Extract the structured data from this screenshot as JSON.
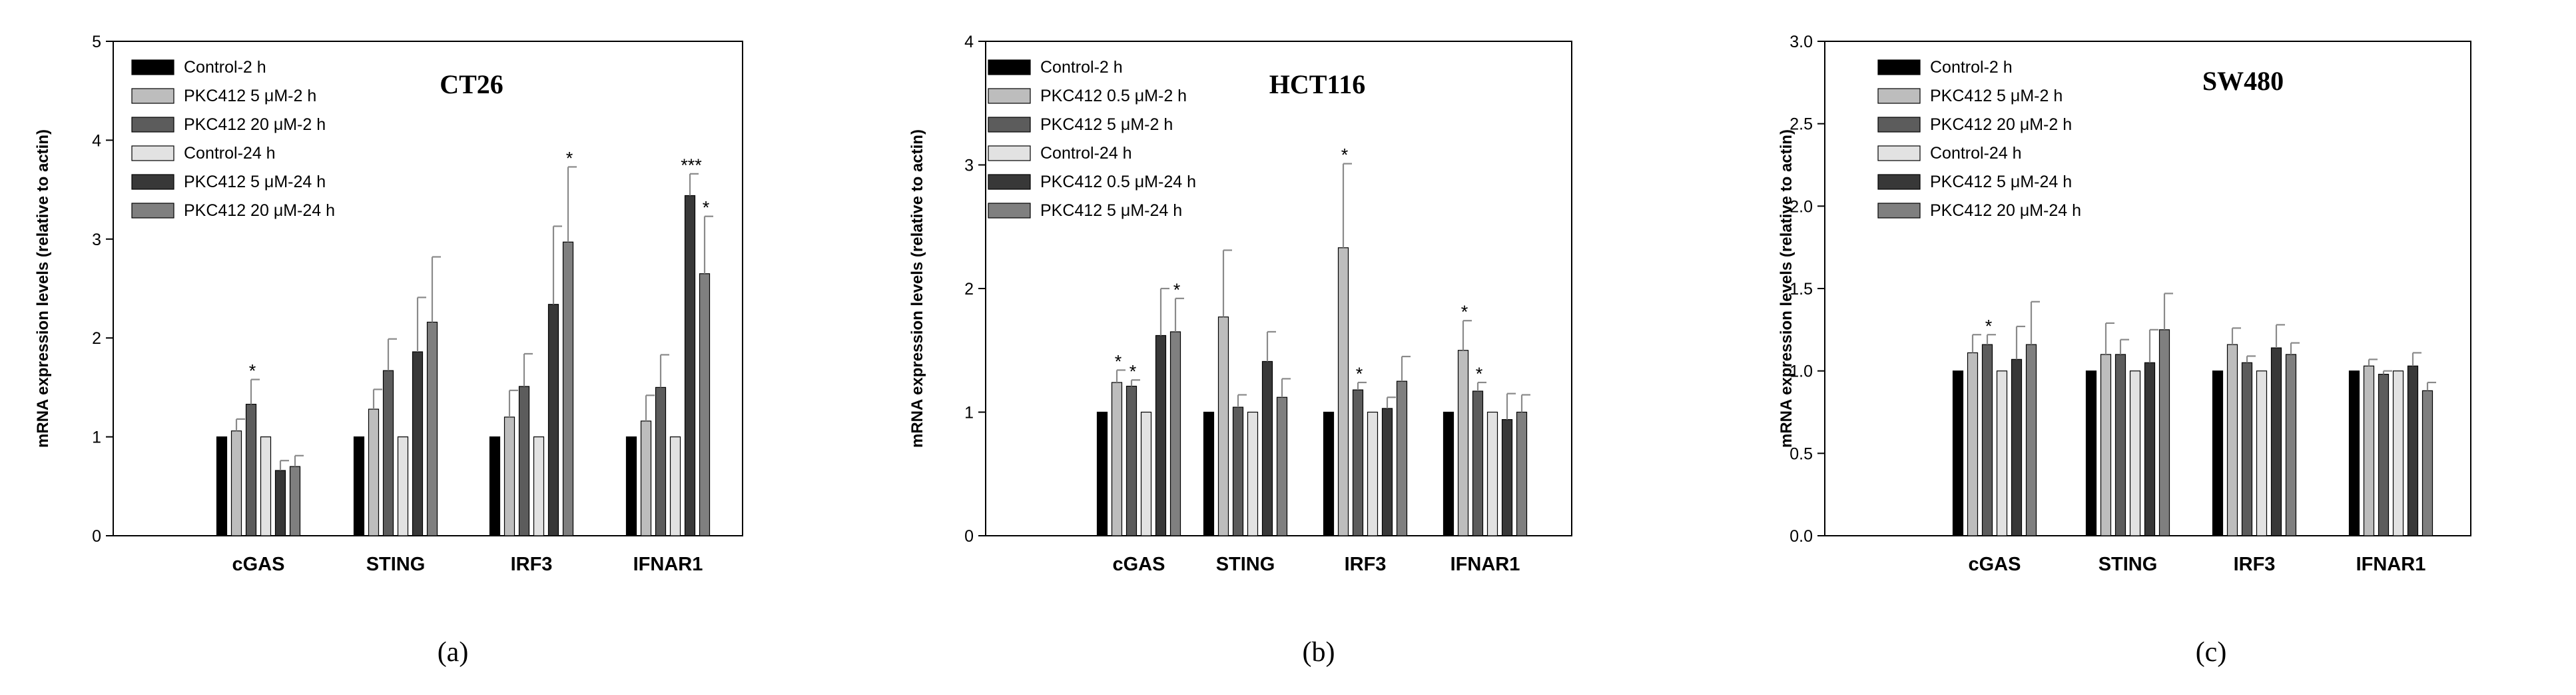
{
  "figure": {
    "series_colors": [
      "#000000",
      "#bdbdbd",
      "#5c5c5c",
      "#e2e2e2",
      "#383838",
      "#7f7f7f"
    ]
  },
  "chart_data": [
    {
      "type": "bar",
      "panel_label": "(a)",
      "title": "CT26",
      "xlabel": "",
      "ylabel": "mRNA expression levels (relative to actin)",
      "ylim": [
        0,
        5
      ],
      "yticks": [
        "0",
        "1",
        "2",
        "3",
        "4",
        "5"
      ],
      "categories": [
        "cGAS",
        "STING",
        "IRF3",
        "IFNAR1"
      ],
      "legend_position": "top-left",
      "series": [
        {
          "name": "Control-2 h",
          "values": [
            1.0,
            1.0,
            1.0,
            1.0
          ],
          "errors": [
            0,
            0,
            0,
            0
          ],
          "sig": [
            "",
            "",
            "",
            ""
          ]
        },
        {
          "name": "PKC412 5 μM-2 h",
          "values": [
            1.06,
            1.28,
            1.2,
            1.16
          ],
          "errors": [
            0.12,
            0.2,
            0.27,
            0.26
          ],
          "sig": [
            "",
            "",
            "",
            ""
          ]
        },
        {
          "name": "PKC412 20 μM-2 h",
          "values": [
            1.33,
            1.67,
            1.51,
            1.5
          ],
          "errors": [
            0.25,
            0.32,
            0.33,
            0.33
          ],
          "sig": [
            "*",
            "",
            "",
            ""
          ]
        },
        {
          "name": "Control-24 h",
          "values": [
            1.0,
            1.0,
            1.0,
            1.0
          ],
          "errors": [
            0,
            0,
            0,
            0
          ],
          "sig": [
            "",
            "",
            "",
            ""
          ]
        },
        {
          "name": "PKC412 5 μM-24 h",
          "values": [
            0.66,
            1.86,
            2.34,
            3.44
          ],
          "errors": [
            0.1,
            0.55,
            0.79,
            0.22
          ],
          "sig": [
            "",
            "",
            "",
            "***"
          ]
        },
        {
          "name": "PKC412 20 μM-24 h",
          "values": [
            0.7,
            2.16,
            2.97,
            2.65
          ],
          "errors": [
            0.11,
            0.66,
            0.76,
            0.58
          ],
          "sig": [
            "",
            "",
            "*",
            "*"
          ]
        }
      ]
    },
    {
      "type": "bar",
      "panel_label": "(b)",
      "title": "HCT116",
      "xlabel": "",
      "ylabel": "mRNA expression levels (relative to actin)",
      "ylim": [
        0,
        4
      ],
      "yticks": [
        "0",
        "1",
        "2",
        "3",
        "4"
      ],
      "categories": [
        "cGAS",
        "STING",
        "IRF3",
        "IFNAR1"
      ],
      "legend_position": "top-left",
      "series": [
        {
          "name": "Control-2 h",
          "values": [
            1.0,
            1.0,
            1.0,
            1.0
          ],
          "errors": [
            0,
            0,
            0,
            0
          ],
          "sig": [
            "",
            "",
            "",
            ""
          ]
        },
        {
          "name": "PKC412 0.5 μM-2 h",
          "values": [
            1.24,
            1.77,
            2.33,
            1.5
          ],
          "errors": [
            0.1,
            0.54,
            0.68,
            0.24
          ],
          "sig": [
            "*",
            "",
            "*",
            "*"
          ]
        },
        {
          "name": "PKC412 5 μM-2 h",
          "values": [
            1.21,
            1.04,
            1.18,
            1.17
          ],
          "errors": [
            0.05,
            0.1,
            0.06,
            0.07
          ],
          "sig": [
            "*",
            "",
            "*",
            "*"
          ]
        },
        {
          "name": "Control-24 h",
          "values": [
            1.0,
            1.0,
            1.0,
            1.0
          ],
          "errors": [
            0,
            0,
            0,
            0
          ],
          "sig": [
            "",
            "",
            "",
            ""
          ]
        },
        {
          "name": "PKC412 0.5 μM-24 h",
          "values": [
            1.62,
            1.41,
            1.03,
            0.94
          ],
          "errors": [
            0.38,
            0.24,
            0.09,
            0.21
          ],
          "sig": [
            "",
            "",
            "",
            ""
          ]
        },
        {
          "name": "PKC412 5 μM-24 h",
          "values": [
            1.65,
            1.12,
            1.25,
            1.0
          ],
          "errors": [
            0.27,
            0.15,
            0.2,
            0.14
          ],
          "sig": [
            "*",
            "",
            "",
            ""
          ]
        }
      ]
    },
    {
      "type": "bar",
      "panel_label": "(c)",
      "title": "SW480",
      "xlabel": "",
      "ylabel": "mRNA expression levels (relative to actin)",
      "ylim": [
        0,
        3
      ],
      "yticks": [
        "0.0",
        "0.5",
        "1.0",
        "1.5",
        "2.0",
        "2.5",
        "3.0"
      ],
      "categories": [
        "cGAS",
        "STING",
        "IRF3",
        "IFNAR1"
      ],
      "legend_position": "top-left",
      "series": [
        {
          "name": "Control-2 h",
          "values": [
            1.0,
            1.0,
            1.0,
            1.0
          ],
          "errors": [
            0,
            0,
            0,
            0
          ],
          "sig": [
            "",
            "",
            "",
            ""
          ]
        },
        {
          "name": "PKC412 5 μM-2 h",
          "values": [
            1.11,
            1.1,
            1.16,
            1.03
          ],
          "errors": [
            0.11,
            0.19,
            0.1,
            0.04
          ],
          "sig": [
            "",
            "",
            "",
            ""
          ]
        },
        {
          "name": "PKC412 20 μM-2 h",
          "values": [
            1.16,
            1.1,
            1.05,
            0.98
          ],
          "errors": [
            0.06,
            0.09,
            0.04,
            0.02
          ],
          "sig": [
            "*",
            "",
            "",
            ""
          ]
        },
        {
          "name": "Control-24 h",
          "values": [
            1.0,
            1.0,
            1.0,
            1.0
          ],
          "errors": [
            0,
            0,
            0,
            0
          ],
          "sig": [
            "",
            "",
            "",
            ""
          ]
        },
        {
          "name": "PKC412 5 μM-24 h",
          "values": [
            1.07,
            1.05,
            1.14,
            1.03
          ],
          "errors": [
            0.2,
            0.2,
            0.14,
            0.08
          ],
          "sig": [
            "",
            "",
            "",
            ""
          ]
        },
        {
          "name": "PKC412 20 μM-24 h",
          "values": [
            1.16,
            1.25,
            1.1,
            0.88
          ],
          "errors": [
            0.26,
            0.22,
            0.07,
            0.05
          ],
          "sig": [
            "",
            "",
            "",
            ""
          ]
        }
      ]
    }
  ]
}
